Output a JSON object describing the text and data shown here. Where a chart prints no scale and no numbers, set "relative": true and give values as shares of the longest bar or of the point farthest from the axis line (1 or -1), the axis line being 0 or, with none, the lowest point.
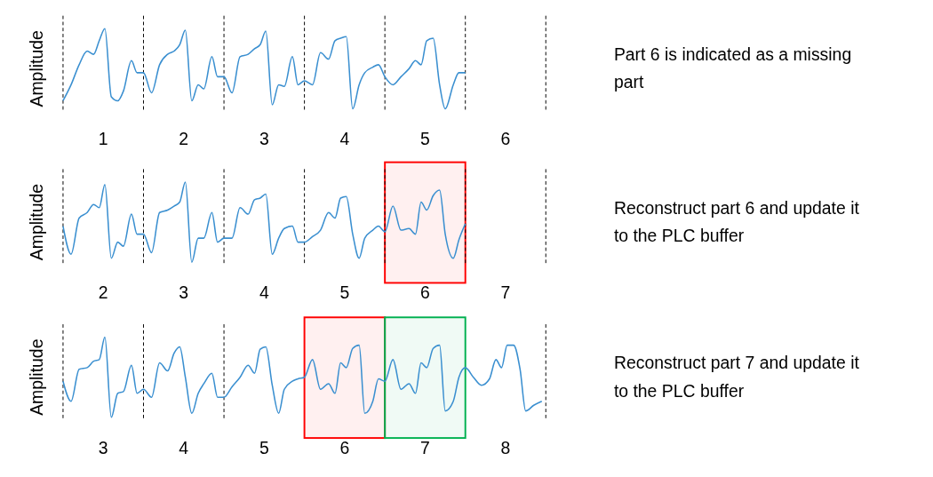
{
  "chart_data": [
    {
      "type": "line",
      "relative": true,
      "ylabel": "Amplitude",
      "tick_labels": "x",
      "xlim": [
        0.5,
        6.5
      ],
      "xticks": [
        1,
        2,
        3,
        4,
        5,
        6
      ],
      "ref_lines": [
        {
          "axis": "x",
          "value": 0.5,
          "line_style": "dashed",
          "color": "#000000"
        },
        {
          "axis": "x",
          "value": 1.5,
          "line_style": "dashed",
          "color": "#000000"
        },
        {
          "axis": "x",
          "value": 2.5,
          "line_style": "dashed",
          "color": "#000000"
        },
        {
          "axis": "x",
          "value": 3.5,
          "line_style": "dashed",
          "color": "#000000"
        },
        {
          "axis": "x",
          "value": 4.5,
          "line_style": "dashed",
          "color": "#000000"
        },
        {
          "axis": "x",
          "value": 5.5,
          "line_style": "dashed",
          "color": "#000000"
        },
        {
          "axis": "x",
          "value": 6.5,
          "line_style": "dashed",
          "color": "#000000"
        }
      ],
      "annotations": [
        "Part 6 is indicated as a missing part"
      ],
      "series": [
        {
          "color": "#3a8fd0",
          "x": [
            0.5,
            0.6,
            0.7,
            0.8,
            0.88,
            0.95,
            1.02,
            1.1,
            1.18,
            1.25,
            1.35,
            1.42,
            1.5,
            1.6,
            1.7,
            1.8,
            1.88,
            1.95,
            2.02,
            2.1,
            2.18,
            2.25,
            2.35,
            2.42,
            2.5,
            2.6,
            2.7,
            2.8,
            2.88,
            2.95,
            3.02,
            3.1,
            3.18,
            3.25,
            3.35,
            3.42,
            3.5,
            3.6,
            3.7,
            3.8,
            3.88,
            3.95,
            4.02,
            4.1,
            4.18,
            4.25,
            4.35,
            4.42,
            4.5,
            4.6,
            4.7,
            4.8,
            4.88,
            4.95,
            5.02,
            5.1,
            5.18,
            5.25,
            5.35,
            5.42,
            5.5
          ],
          "values": [
            0.1,
            0.3,
            0.55,
            0.72,
            0.68,
            0.85,
            1,
            0.15,
            0.1,
            0.22,
            0.6,
            0.45,
            0.45,
            0.2,
            0.55,
            0.68,
            0.72,
            0.8,
            0.98,
            0.1,
            0.3,
            0.25,
            0.65,
            0.4,
            0.4,
            0.2,
            0.65,
            0.68,
            0.75,
            0.8,
            0.97,
            0.05,
            0.3,
            0.28,
            0.65,
            0.3,
            0.35,
            0.3,
            0.7,
            0.62,
            0.85,
            0.88,
            0.9,
            0,
            0.3,
            0.45,
            0.52,
            0.55,
            0.4,
            0.3,
            0.4,
            0.5,
            0.6,
            0.55,
            0.85,
            0.88,
            0.3,
            0,
            0.3,
            0.45,
            0.45
          ]
        }
      ]
    },
    {
      "type": "line",
      "relative": true,
      "ylabel": "Amplitude",
      "tick_labels": "x",
      "xlim": [
        1.5,
        7.5
      ],
      "xticks": [
        2,
        3,
        4,
        5,
        6,
        7
      ],
      "ref_lines": [
        {
          "axis": "x",
          "value": 1.5,
          "line_style": "dashed",
          "color": "#000000"
        },
        {
          "axis": "x",
          "value": 2.5,
          "line_style": "dashed",
          "color": "#000000"
        },
        {
          "axis": "x",
          "value": 3.5,
          "line_style": "dashed",
          "color": "#000000"
        },
        {
          "axis": "x",
          "value": 4.5,
          "line_style": "dashed",
          "color": "#000000"
        },
        {
          "axis": "x",
          "value": 5.5,
          "line_style": "dashed",
          "color": "#000000"
        },
        {
          "axis": "x",
          "value": 6.5,
          "line_style": "dashed",
          "color": "#000000"
        },
        {
          "axis": "x",
          "value": 7.5,
          "line_style": "dashed",
          "color": "#000000"
        }
      ],
      "bands": [
        {
          "axis": "x",
          "from": 5.5,
          "to": 6.5,
          "color": "#ff0000"
        }
      ],
      "annotations": [
        "Reconstruct part 6 and update it to the PLC buffer"
      ],
      "series": [
        {
          "color": "#3a8fd0",
          "x": [
            1.5,
            1.6,
            1.7,
            1.8,
            1.88,
            1.95,
            2.02,
            2.1,
            2.18,
            2.25,
            2.35,
            2.42,
            2.5,
            2.6,
            2.7,
            2.8,
            2.88,
            2.95,
            3.02,
            3.1,
            3.18,
            3.25,
            3.35,
            3.42,
            3.5,
            3.6,
            3.7,
            3.8,
            3.88,
            3.95,
            4.02,
            4.1,
            4.18,
            4.25,
            4.35,
            4.42,
            4.5,
            4.6,
            4.7,
            4.8,
            4.88,
            4.95,
            5.02,
            5.1,
            5.18,
            5.25,
            5.35,
            5.42,
            5.5,
            5.6,
            5.7,
            5.8,
            5.88,
            5.95,
            6.02,
            6.1,
            6.18,
            6.25,
            6.35,
            6.42,
            6.5
          ],
          "values": [
            0.45,
            0.1,
            0.55,
            0.62,
            0.72,
            0.68,
            0.97,
            0.05,
            0.25,
            0.2,
            0.6,
            0.35,
            0.35,
            0.12,
            0.62,
            0.65,
            0.7,
            0.75,
            1,
            0,
            0.3,
            0.3,
            0.62,
            0.25,
            0.3,
            0.3,
            0.68,
            0.6,
            0.78,
            0.8,
            0.85,
            0.1,
            0.3,
            0.42,
            0.45,
            0.25,
            0.25,
            0.32,
            0.4,
            0.62,
            0.55,
            0.8,
            0.82,
            0.35,
            0.05,
            0.3,
            0.4,
            0.45,
            0.38,
            0.7,
            0.4,
            0.42,
            0.35,
            0.75,
            0.65,
            0.83,
            0.9,
            0.35,
            0.05,
            0.28,
            0.48
          ]
        }
      ]
    },
    {
      "type": "line",
      "relative": true,
      "ylabel": "Amplitude",
      "tick_labels": "x",
      "xlim": [
        2.5,
        8.5
      ],
      "xticks": [
        3,
        4,
        5,
        6,
        7,
        8
      ],
      "ref_lines": [
        {
          "axis": "x",
          "value": 2.5,
          "line_style": "dashed",
          "color": "#000000"
        },
        {
          "axis": "x",
          "value": 3.5,
          "line_style": "dashed",
          "color": "#000000"
        },
        {
          "axis": "x",
          "value": 4.5,
          "line_style": "dashed",
          "color": "#000000"
        },
        {
          "axis": "x",
          "value": 8.5,
          "line_style": "dashed",
          "color": "#000000"
        }
      ],
      "bands": [
        {
          "axis": "x",
          "from": 5.5,
          "to": 6.5,
          "color": "#ff0000"
        },
        {
          "axis": "x",
          "from": 6.5,
          "to": 7.5,
          "color": "#00b050"
        }
      ],
      "annotations": [
        "Reconstruct part 7 and update it to the PLC buffer"
      ],
      "series": [
        {
          "color": "#3a8fd0",
          "x": [
            2.5,
            2.6,
            2.7,
            2.8,
            2.88,
            2.95,
            3.02,
            3.1,
            3.18,
            3.25,
            3.35,
            3.42,
            3.5,
            3.6,
            3.7,
            3.8,
            3.88,
            3.95,
            4.02,
            4.1,
            4.18,
            4.25,
            4.35,
            4.42,
            4.5,
            4.6,
            4.7,
            4.8,
            4.88,
            4.95,
            5.02,
            5.1,
            5.18,
            5.25,
            5.35,
            5.42,
            5.5,
            5.6,
            5.7,
            5.8,
            5.88,
            5.95,
            6.02,
            6.1,
            6.18,
            6.25,
            6.35,
            6.42,
            6.5,
            6.6,
            6.7,
            6.8,
            6.88,
            6.95,
            7.02,
            7.1,
            7.18,
            7.25,
            7.35,
            7.42,
            7.5,
            7.6,
            7.7,
            7.8,
            7.88,
            7.95,
            8.02,
            8.1,
            8.18,
            8.25,
            8.35,
            8.45
          ],
          "values": [
            0.45,
            0.2,
            0.6,
            0.62,
            0.7,
            0.72,
            1,
            0,
            0.3,
            0.32,
            0.65,
            0.3,
            0.35,
            0.25,
            0.68,
            0.58,
            0.8,
            0.88,
            0.5,
            0.05,
            0.3,
            0.42,
            0.55,
            0.25,
            0.25,
            0.38,
            0.5,
            0.65,
            0.55,
            0.85,
            0.88,
            0.4,
            0.05,
            0.35,
            0.45,
            0.48,
            0.5,
            0.72,
            0.35,
            0.42,
            0.3,
            0.68,
            0.62,
            0.86,
            0.9,
            0.05,
            0.2,
            0.48,
            0.45,
            0.72,
            0.35,
            0.42,
            0.3,
            0.68,
            0.62,
            0.86,
            0.9,
            0.08,
            0.2,
            0.5,
            0.62,
            0.5,
            0.4,
            0.48,
            0.72,
            0.62,
            0.9,
            0.9,
            0.6,
            0.08,
            0.15,
            0.2
          ]
        }
      ]
    }
  ]
}
